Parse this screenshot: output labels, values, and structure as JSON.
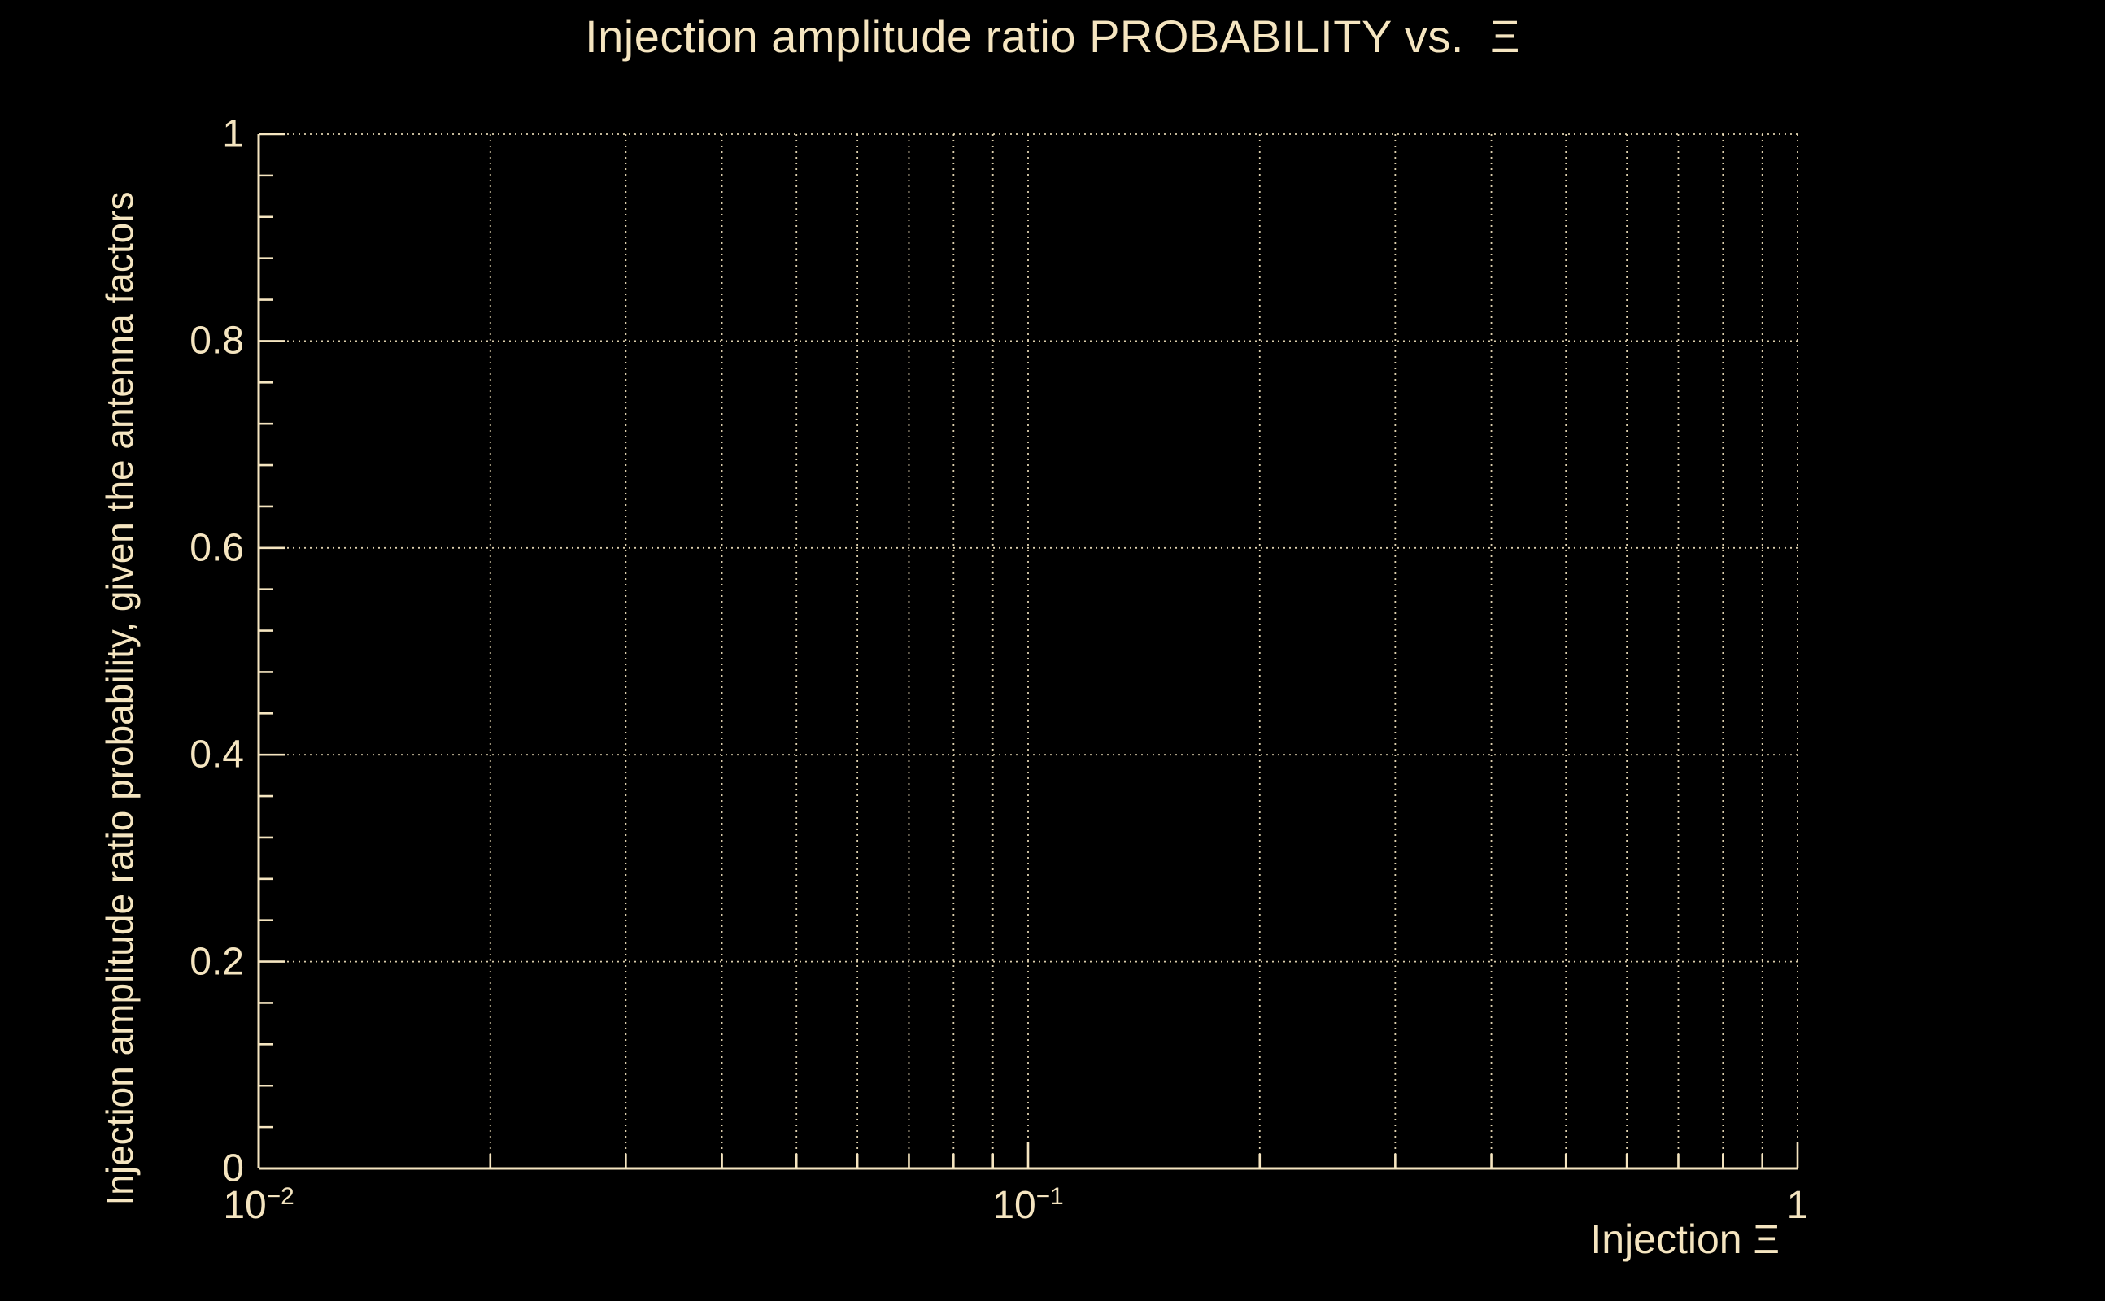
{
  "page": {
    "background": "#000000",
    "foreground": "#f5e5c0"
  },
  "chart_data": {
    "type": "line",
    "title": "Injection amplitude ratio PROBABILITY vs.  Ξ",
    "xlabel": "Injection Ξ",
    "ylabel": "Injection amplitude ratio probability, given the antenna factors",
    "x_scale": "log",
    "y_scale": "linear",
    "xlim": [
      0.01,
      1
    ],
    "ylim": [
      0,
      1
    ],
    "x_major_ticks": [
      {
        "value": 0.01,
        "base": "10",
        "exp": "−2"
      },
      {
        "value": 0.1,
        "base": "10",
        "exp": "−1"
      },
      {
        "value": 1,
        "base": "1",
        "exp": ""
      }
    ],
    "x_minor_ticks": [
      0.02,
      0.03,
      0.04,
      0.05,
      0.06,
      0.07,
      0.08,
      0.09,
      0.2,
      0.3,
      0.4,
      0.5,
      0.6,
      0.7,
      0.8,
      0.9
    ],
    "y_major_ticks": [
      {
        "value": 0,
        "label": "0"
      },
      {
        "value": 0.2,
        "label": "0.2"
      },
      {
        "value": 0.4,
        "label": "0.4"
      },
      {
        "value": 0.6,
        "label": "0.6"
      },
      {
        "value": 0.8,
        "label": "0.8"
      },
      {
        "value": 1,
        "label": "1"
      }
    ],
    "y_minor_step": 0.04,
    "grid": {
      "x": true,
      "y": true,
      "style": "dotted"
    },
    "legend": null,
    "series": []
  }
}
